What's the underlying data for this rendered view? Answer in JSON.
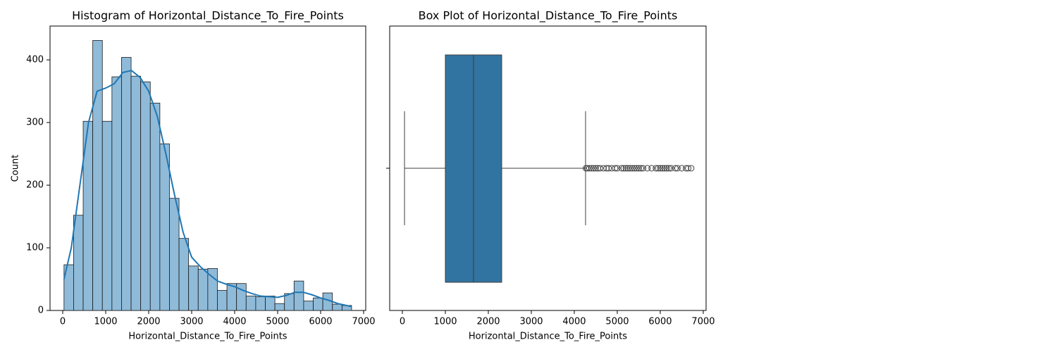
{
  "chart_data": [
    {
      "type": "histogram",
      "title": "Histogram of Horizontal_Distance_To_Fire_Points",
      "x_label": "Horizontal_Distance_To_Fire_Points",
      "y_label": "Count",
      "bins": [
        30,
        253,
        476,
        699,
        922,
        1145,
        1368,
        1591,
        1814,
        2037,
        2260,
        2483,
        2706,
        2929,
        3152,
        3375,
        3598,
        3821,
        4044,
        4267,
        4490,
        4713,
        4936,
        5159,
        5382,
        5605,
        5828,
        6051,
        6274,
        6497,
        6720
      ],
      "values": [
        73,
        152,
        302,
        431,
        302,
        373,
        404,
        374,
        365,
        331,
        266,
        179,
        115,
        71,
        66,
        67,
        32,
        43,
        43,
        23,
        22,
        23,
        11,
        27,
        47,
        15,
        20,
        28,
        10,
        8
      ],
      "color": "#8fbbd9",
      "edge_color": "#1a1a1a",
      "kde": {
        "color": "#1f77b4",
        "x": [
          30,
          200,
          400,
          600,
          800,
          1000,
          1200,
          1400,
          1600,
          1800,
          2000,
          2200,
          2400,
          2600,
          2800,
          3000,
          3200,
          3400,
          3600,
          3800,
          4000,
          4200,
          4400,
          4600,
          4800,
          5000,
          5200,
          5400,
          5600,
          5800,
          6000,
          6200,
          6400,
          6600,
          6720
        ],
        "y": [
          50,
          100,
          200,
          300,
          350,
          355,
          362,
          380,
          383,
          372,
          350,
          310,
          250,
          185,
          125,
          85,
          70,
          58,
          47,
          42,
          38,
          32,
          27,
          23,
          22,
          21,
          24,
          29,
          29,
          25,
          20,
          16,
          11,
          8,
          6
        ]
      },
      "xlim": [
        -295,
        7049
      ],
      "ylim": [
        0,
        454
      ],
      "xticks": [
        0,
        1000,
        2000,
        3000,
        4000,
        5000,
        6000,
        7000
      ],
      "yticks": [
        0,
        100,
        200,
        300,
        400
      ]
    },
    {
      "type": "box",
      "title": "Box Plot of Horizontal_Distance_To_Fire_Points",
      "x_label": "Horizontal_Distance_To_Fire_Points",
      "whisker_low": 50,
      "q1": 1000,
      "median": 1656,
      "q3": 2311,
      "whisker_high": 4262,
      "outliers": [
        4270,
        4300,
        4350,
        4400,
        4450,
        4500,
        4550,
        4600,
        4680,
        4750,
        4800,
        4870,
        4950,
        5000,
        5100,
        5150,
        5200,
        5250,
        5300,
        5350,
        5400,
        5450,
        5500,
        5550,
        5600,
        5700,
        5800,
        5900,
        5950,
        6000,
        6050,
        6100,
        6150,
        6200,
        6250,
        6350,
        6400,
        6500,
        6600,
        6650,
        6720
      ],
      "color": "#3274a1",
      "edge_color": "#3f3f3f",
      "xlim": [
        -295,
        7066
      ],
      "xticks": [
        0,
        1000,
        2000,
        3000,
        4000,
        5000,
        6000,
        7000
      ]
    }
  ]
}
